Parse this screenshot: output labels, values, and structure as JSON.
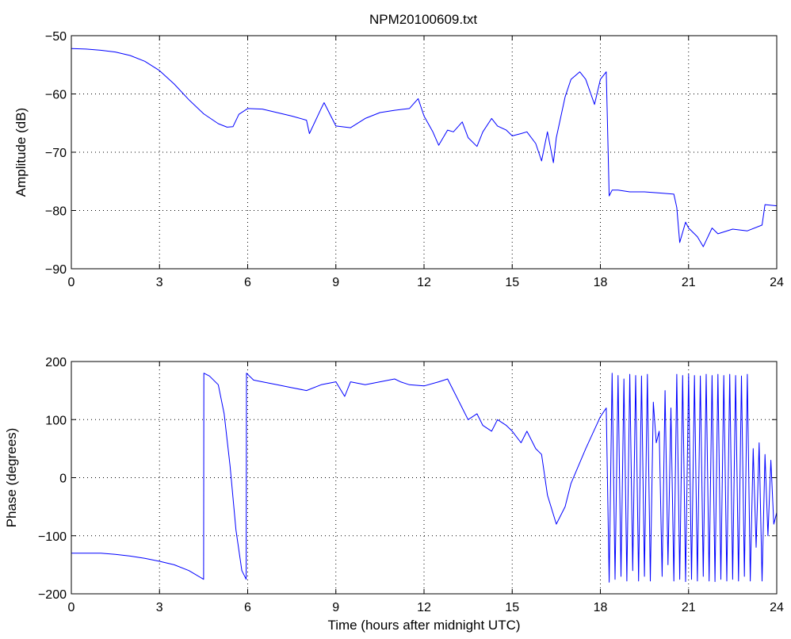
{
  "title": "NPM20100609.txt",
  "chart_data": [
    {
      "type": "line",
      "title": "NPM20100609.txt",
      "xlabel": "",
      "ylabel": "Amplitude (dB)",
      "xlim": [
        0,
        24
      ],
      "ylim": [
        -90,
        -50
      ],
      "xticks": [
        "0",
        "3",
        "6",
        "9",
        "12",
        "15",
        "18",
        "21",
        "24"
      ],
      "yticks": [
        "−50",
        "−60",
        "−70",
        "−80",
        "−90"
      ],
      "grid": true,
      "color": "#0000ff",
      "series": [
        {
          "x": [
            0,
            0.5,
            1,
            1.5,
            2,
            2.5,
            3,
            3.5,
            4,
            4.5,
            5,
            5.3,
            5.5,
            5.7,
            6,
            6.5,
            7,
            7.5,
            8,
            8.1,
            8.5,
            8.6,
            9,
            9.5,
            10,
            10.5,
            11,
            11.5,
            11.8,
            12,
            12.3,
            12.5,
            12.8,
            13,
            13.3,
            13.5,
            13.8,
            14,
            14.3,
            14.5,
            14.8,
            15,
            15.3,
            15.5,
            15.8,
            16,
            16.2,
            16.4,
            16.5,
            16.8,
            17,
            17.3,
            17.5,
            17.8,
            18,
            18.2,
            18.3,
            18.4,
            18.6,
            19,
            19.5,
            20,
            20.5,
            20.6,
            20.7,
            20.9,
            21,
            21.3,
            21.5,
            21.8,
            22,
            22.5,
            23,
            23.5,
            23.6,
            24
          ],
          "y": [
            -52.2,
            -52.3,
            -52.5,
            -52.8,
            -53.4,
            -54.4,
            -56,
            -58.3,
            -61,
            -63.4,
            -65.1,
            -65.7,
            -65.6,
            -63.5,
            -62.5,
            -62.6,
            -63.2,
            -63.8,
            -64.5,
            -66.8,
            -62.5,
            -61.5,
            -65.5,
            -65.8,
            -64.2,
            -63.2,
            -62.8,
            -62.5,
            -60.8,
            -63.8,
            -66.5,
            -68.8,
            -66.2,
            -66.5,
            -64.8,
            -67.5,
            -69,
            -66.5,
            -64.2,
            -65.5,
            -66.2,
            -67.2,
            -66.8,
            -66.5,
            -68.5,
            -71.5,
            -66.5,
            -71.8,
            -67.5,
            -60.5,
            -57.5,
            -56.2,
            -57.5,
            -61.8,
            -57.5,
            -56.2,
            -77.5,
            -76.5,
            -76.5,
            -76.8,
            -76.8,
            -77,
            -77.2,
            -79.5,
            -85.5,
            -82,
            -83,
            -84.5,
            -86.2,
            -83,
            -84,
            -83.2,
            -83.5,
            -82.5,
            -79,
            -79.2
          ]
        }
      ]
    },
    {
      "type": "line",
      "title": "",
      "xlabel": "Time (hours after midnight UTC)",
      "ylabel": "Phase (degrees)",
      "xlim": [
        0,
        24
      ],
      "ylim": [
        -200,
        200
      ],
      "xticks": [
        "0",
        "3",
        "6",
        "9",
        "12",
        "15",
        "18",
        "21",
        "24"
      ],
      "yticks": [
        "200",
        "100",
        "0",
        "−100",
        "−200"
      ],
      "grid": true,
      "color": "#0000ff",
      "series": [
        {
          "x": [
            0,
            0.5,
            1,
            1.5,
            2,
            2.5,
            3,
            3.5,
            4,
            4.5,
            4.51,
            4.7,
            5,
            5.2,
            5.4,
            5.6,
            5.8,
            5.95,
            5.96,
            6.2,
            6.5,
            7,
            7.5,
            8,
            8.5,
            9,
            9.3,
            9.5,
            10,
            10.5,
            11,
            11.2,
            11.5,
            12,
            12.5,
            12.8,
            13,
            13.3,
            13.5,
            13.8,
            14,
            14.3,
            14.5,
            14.8,
            15,
            15.3,
            15.5,
            15.8,
            16,
            16.2,
            16.5,
            16.8,
            17,
            17.5,
            18,
            18.2,
            18.3,
            18.4,
            18.5,
            18.6,
            18.7,
            18.8,
            18.9,
            19,
            19.1,
            19.2,
            19.3,
            19.4,
            19.5,
            19.6,
            19.7,
            19.8,
            19.9,
            20,
            20.1,
            20.2,
            20.3,
            20.4,
            20.5,
            20.6,
            20.7,
            20.8,
            20.9,
            21,
            21.1,
            21.2,
            21.3,
            21.4,
            21.5,
            21.6,
            21.7,
            21.8,
            21.9,
            22,
            22.1,
            22.2,
            22.3,
            22.4,
            22.5,
            22.6,
            22.7,
            22.8,
            22.9,
            23,
            23.1,
            23.2,
            23.3,
            23.4,
            23.5,
            23.6,
            23.7,
            23.8,
            23.9,
            24
          ],
          "y": [
            -130,
            -130,
            -130,
            -132,
            -135,
            -139,
            -144,
            -150,
            -160,
            -175,
            180,
            175,
            160,
            110,
            20,
            -90,
            -160,
            -175,
            180,
            168,
            165,
            160,
            155,
            150,
            160,
            165,
            140,
            165,
            160,
            165,
            170,
            165,
            160,
            158,
            165,
            170,
            150,
            120,
            100,
            110,
            90,
            80,
            100,
            90,
            80,
            60,
            80,
            50,
            40,
            -30,
            -80,
            -50,
            -10,
            50,
            105,
            120,
            -180,
            180,
            -175,
            176,
            -170,
            170,
            -178,
            178,
            -160,
            176,
            -178,
            175,
            -170,
            178,
            -178,
            130,
            60,
            80,
            -170,
            150,
            -150,
            120,
            -178,
            178,
            -175,
            176,
            -179,
            178,
            -175,
            176,
            -178,
            175,
            -170,
            178,
            -178,
            176,
            -179,
            178,
            -175,
            176,
            -178,
            178,
            -175,
            176,
            -178,
            175,
            -170,
            178,
            -178,
            50,
            -120,
            60,
            -178,
            40,
            -100,
            30,
            -80,
            -60
          ]
        }
      ]
    }
  ]
}
